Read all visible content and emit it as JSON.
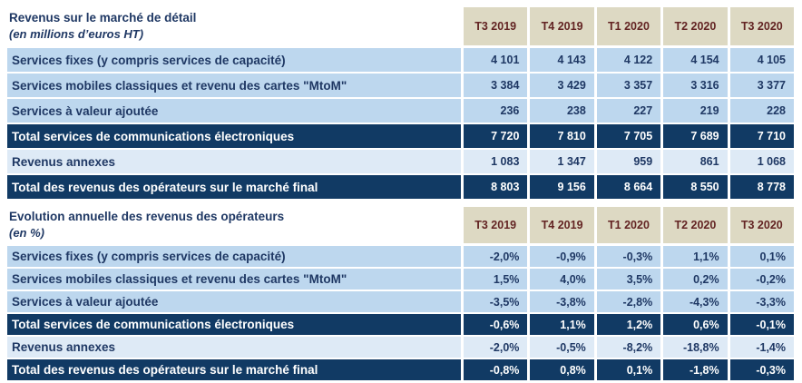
{
  "colors": {
    "row_blue": "#BDD7EE",
    "row_light_blue": "#DEEAF6",
    "total_navy": "#113A64",
    "header_beige": "#DDD9C3",
    "header_text_maroon": "#632423",
    "body_text_navy": "#1F3864"
  },
  "table1": {
    "title": "Revenus sur le marché de détail",
    "subtitle": "(en millions d’euros HT)",
    "columns": [
      "T3 2019",
      "T4 2019",
      "T1 2020",
      "T2 2020",
      "T3 2020"
    ],
    "rows": [
      {
        "label": "Services fixes (y compris services de capacité)",
        "style": "normal",
        "values": [
          "4 101",
          "4 143",
          "4 122",
          "4 154",
          "4 105"
        ]
      },
      {
        "label": "Services mobiles classiques et revenu des cartes \"MtoM\"",
        "style": "normal",
        "values": [
          "3 384",
          "3 429",
          "3 357",
          "3 316",
          "3 377"
        ]
      },
      {
        "label": "Services à valeur ajoutée",
        "style": "normal",
        "values": [
          "236",
          "238",
          "227",
          "219",
          "228"
        ]
      },
      {
        "label": "Total services de communications électroniques",
        "style": "total",
        "values": [
          "7 720",
          "7 810",
          "7 705",
          "7 689",
          "7 710"
        ]
      },
      {
        "label": "Revenus annexes",
        "style": "light",
        "values": [
          "1 083",
          "1 347",
          "959",
          "861",
          "1 068"
        ]
      },
      {
        "label": "Total des revenus des opérateurs sur le marché final",
        "style": "total",
        "values": [
          "8 803",
          "9 156",
          "8 664",
          "8 550",
          "8 778"
        ]
      }
    ]
  },
  "table2": {
    "title": "Evolution annuelle des revenus des opérateurs",
    "subtitle": "(en %)",
    "columns": [
      "T3 2019",
      "T4 2019",
      "T1 2020",
      "T2 2020",
      "T3 2020"
    ],
    "rows": [
      {
        "label": "Services fixes (y compris services de capacité)",
        "style": "normal",
        "values": [
          "-2,0%",
          "-0,9%",
          "-0,3%",
          "1,1%",
          "0,1%"
        ]
      },
      {
        "label": "Services mobiles classiques et revenu des cartes \"MtoM\"",
        "style": "normal",
        "values": [
          "1,5%",
          "4,0%",
          "3,5%",
          "0,2%",
          "-0,2%"
        ]
      },
      {
        "label": "Services à valeur ajoutée",
        "style": "normal",
        "values": [
          "-3,5%",
          "-3,8%",
          "-2,8%",
          "-4,3%",
          "-3,3%"
        ]
      },
      {
        "label": "Total services de communications électroniques",
        "style": "total",
        "values": [
          "-0,6%",
          "1,1%",
          "1,2%",
          "0,6%",
          "-0,1%"
        ]
      },
      {
        "label": "Revenus annexes",
        "style": "light",
        "values": [
          "-2,0%",
          "-0,5%",
          "-8,2%",
          "-18,8%",
          "-1,4%"
        ]
      },
      {
        "label": "Total des revenus des opérateurs sur le marché final",
        "style": "total",
        "values": [
          "-0,8%",
          "0,8%",
          "0,1%",
          "-1,8%",
          "-0,3%"
        ]
      }
    ]
  }
}
